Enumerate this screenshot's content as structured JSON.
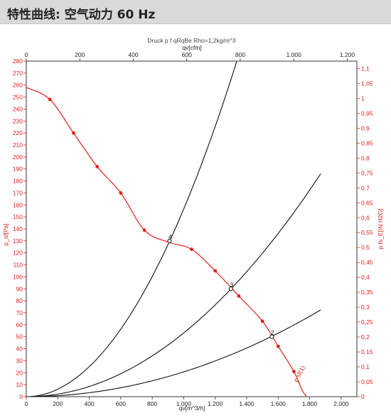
{
  "header": {
    "title": "特性曲线: 空气动力 60 Hz"
  },
  "chart_data": {
    "type": "line",
    "top_note": "Druck p f qRqBe Rho=1,2kg/m^3",
    "x_bottom": {
      "label": "qv[m^3/h]",
      "min": 0,
      "max": 2100,
      "ticks": [
        0,
        200,
        400,
        600,
        800,
        1000,
        1200,
        1400,
        1600,
        1800,
        2000
      ],
      "tick_labels": [
        "0",
        "200",
        "400",
        "600",
        "800",
        "1.000",
        "1.200",
        "1.400",
        "1.600",
        "1.800",
        "2.000"
      ]
    },
    "x_top": {
      "label": "qv[cfm]",
      "min": 0,
      "max": 1236,
      "ticks": [
        0,
        200,
        400,
        600,
        800,
        1000,
        1200
      ],
      "tick_labels": [
        "0",
        "200",
        "400",
        "600",
        "800",
        "1.000",
        "1.200"
      ]
    },
    "y_left": {
      "label": "p_sf[Pa]",
      "min": 0,
      "max": 280,
      "ticks": [
        0,
        10,
        20,
        30,
        40,
        50,
        60,
        70,
        80,
        90,
        100,
        110,
        120,
        130,
        140,
        150,
        160,
        170,
        180,
        190,
        200,
        210,
        220,
        230,
        240,
        250,
        260,
        270,
        280
      ]
    },
    "y_right": {
      "label": "p fs_E[IN H2O]",
      "min": 0,
      "max": 1.125,
      "ticks": [
        0,
        0.05,
        0.1,
        0.15,
        0.2,
        0.25,
        0.3,
        0.35,
        0.4,
        0.45,
        0.5,
        0.55,
        0.6,
        0.65,
        0.7,
        0.75,
        0.8,
        0.85,
        0.9,
        0.95,
        1.0,
        1.05,
        1.1
      ],
      "tick_labels": [
        "0",
        "0,05",
        "0,1",
        "0,15",
        "0,2",
        "0,25",
        "0,3",
        "0,35",
        "0,4",
        "0,45",
        "0,5",
        "0,55",
        "0,6",
        "0,65",
        "0,7",
        "0,75",
        "0,8",
        "0,85",
        "0,9",
        "0,95",
        "1",
        "1,05",
        "1,1"
      ]
    },
    "fan_curve": {
      "name": "p sf(1)",
      "color": "#e0201b",
      "x": [
        0,
        150,
        300,
        450,
        600,
        750,
        900,
        1050,
        1200,
        1350,
        1500,
        1600,
        1700,
        1750,
        1780
      ],
      "y": [
        258,
        248,
        220,
        192,
        170,
        139,
        129,
        123,
        105,
        84,
        63,
        42,
        21,
        6,
        0
      ],
      "markers_x": [
        150,
        300,
        450,
        600,
        750,
        1050,
        1200,
        1350,
        1500,
        1600,
        1700
      ],
      "markers_y": [
        248,
        220,
        192,
        170,
        139,
        123,
        105,
        84,
        63,
        42,
        21
      ]
    },
    "system_curves": [
      {
        "color": "#111111",
        "k": 0.0001566,
        "x_max": 1345
      },
      {
        "color": "#111111",
        "k": 5.32e-05,
        "x_max": 1870
      },
      {
        "color": "#111111",
        "k": 2.07e-05,
        "x_max": 1870
      }
    ],
    "operating_points": [
      {
        "label": "4",
        "x": 910,
        "y": 130
      },
      {
        "label": "3",
        "x": 1300,
        "y": 90
      },
      {
        "label": "2",
        "x": 1560,
        "y": 50
      }
    ],
    "colors": {
      "left_axis": "#e0201b",
      "right_axis": "#e0201b",
      "frame": "#333333"
    }
  }
}
